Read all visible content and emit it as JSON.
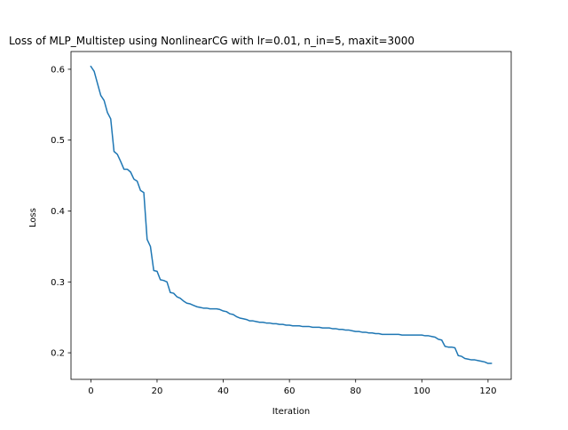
{
  "chart_data": {
    "type": "line",
    "title": "Loss of MLP_Multistep using NonlinearCG with lr=0.01, n_in=5, maxit=3000",
    "xlabel": "Iteration",
    "ylabel": "Loss",
    "xlim": [
      -6,
      127
    ],
    "ylim": [
      0.1625,
      0.625
    ],
    "xticks": [
      0,
      20,
      40,
      60,
      80,
      100,
      120
    ],
    "yticks": [
      0.2,
      0.3,
      0.4,
      0.5,
      0.6
    ],
    "xtick_labels": [
      "0",
      "20",
      "40",
      "60",
      "80",
      "100",
      "120"
    ],
    "ytick_labels": [
      "0.2",
      "0.3",
      "0.4",
      "0.5",
      "0.6"
    ],
    "grid": false,
    "legend": "none",
    "series": [
      {
        "color": "#1f77b4",
        "x": [
          0,
          1,
          2,
          3,
          4,
          5,
          6,
          7,
          8,
          9,
          10,
          11,
          12,
          13,
          14,
          15,
          16,
          17,
          18,
          19,
          20,
          21,
          22,
          23,
          24,
          25,
          26,
          27,
          28,
          29,
          30,
          31,
          32,
          33,
          34,
          35,
          36,
          37,
          38,
          39,
          40,
          41,
          42,
          43,
          44,
          45,
          46,
          47,
          48,
          49,
          50,
          51,
          52,
          53,
          54,
          55,
          56,
          57,
          58,
          59,
          60,
          61,
          62,
          63,
          64,
          65,
          66,
          67,
          68,
          69,
          70,
          71,
          72,
          73,
          74,
          75,
          76,
          77,
          78,
          79,
          80,
          81,
          82,
          83,
          84,
          85,
          86,
          87,
          88,
          89,
          90,
          91,
          92,
          93,
          94,
          95,
          96,
          97,
          98,
          99,
          100,
          101,
          102,
          103,
          104,
          105,
          106,
          107,
          108,
          109,
          110,
          111,
          112,
          113,
          114,
          115,
          116,
          117,
          118,
          119,
          120,
          121
        ],
        "y": [
          0.604,
          0.597,
          0.58,
          0.563,
          0.556,
          0.539,
          0.53,
          0.484,
          0.48,
          0.47,
          0.459,
          0.459,
          0.455,
          0.445,
          0.442,
          0.429,
          0.426,
          0.36,
          0.35,
          0.316,
          0.315,
          0.303,
          0.302,
          0.3,
          0.285,
          0.284,
          0.279,
          0.277,
          0.273,
          0.27,
          0.269,
          0.267,
          0.265,
          0.264,
          0.263,
          0.263,
          0.262,
          0.262,
          0.262,
          0.261,
          0.259,
          0.258,
          0.255,
          0.254,
          0.251,
          0.249,
          0.248,
          0.247,
          0.245,
          0.245,
          0.244,
          0.243,
          0.243,
          0.242,
          0.242,
          0.241,
          0.241,
          0.24,
          0.24,
          0.239,
          0.239,
          0.238,
          0.238,
          0.238,
          0.237,
          0.237,
          0.237,
          0.236,
          0.236,
          0.236,
          0.235,
          0.235,
          0.235,
          0.234,
          0.234,
          0.233,
          0.233,
          0.232,
          0.232,
          0.231,
          0.23,
          0.23,
          0.229,
          0.229,
          0.228,
          0.228,
          0.227,
          0.227,
          0.226,
          0.226,
          0.226,
          0.226,
          0.226,
          0.226,
          0.225,
          0.225,
          0.225,
          0.225,
          0.225,
          0.225,
          0.225,
          0.224,
          0.224,
          0.223,
          0.222,
          0.219,
          0.218,
          0.209,
          0.208,
          0.208,
          0.207,
          0.196,
          0.195,
          0.192,
          0.191,
          0.19,
          0.19,
          0.189,
          0.188,
          0.187,
          0.185,
          0.185
        ]
      }
    ]
  }
}
